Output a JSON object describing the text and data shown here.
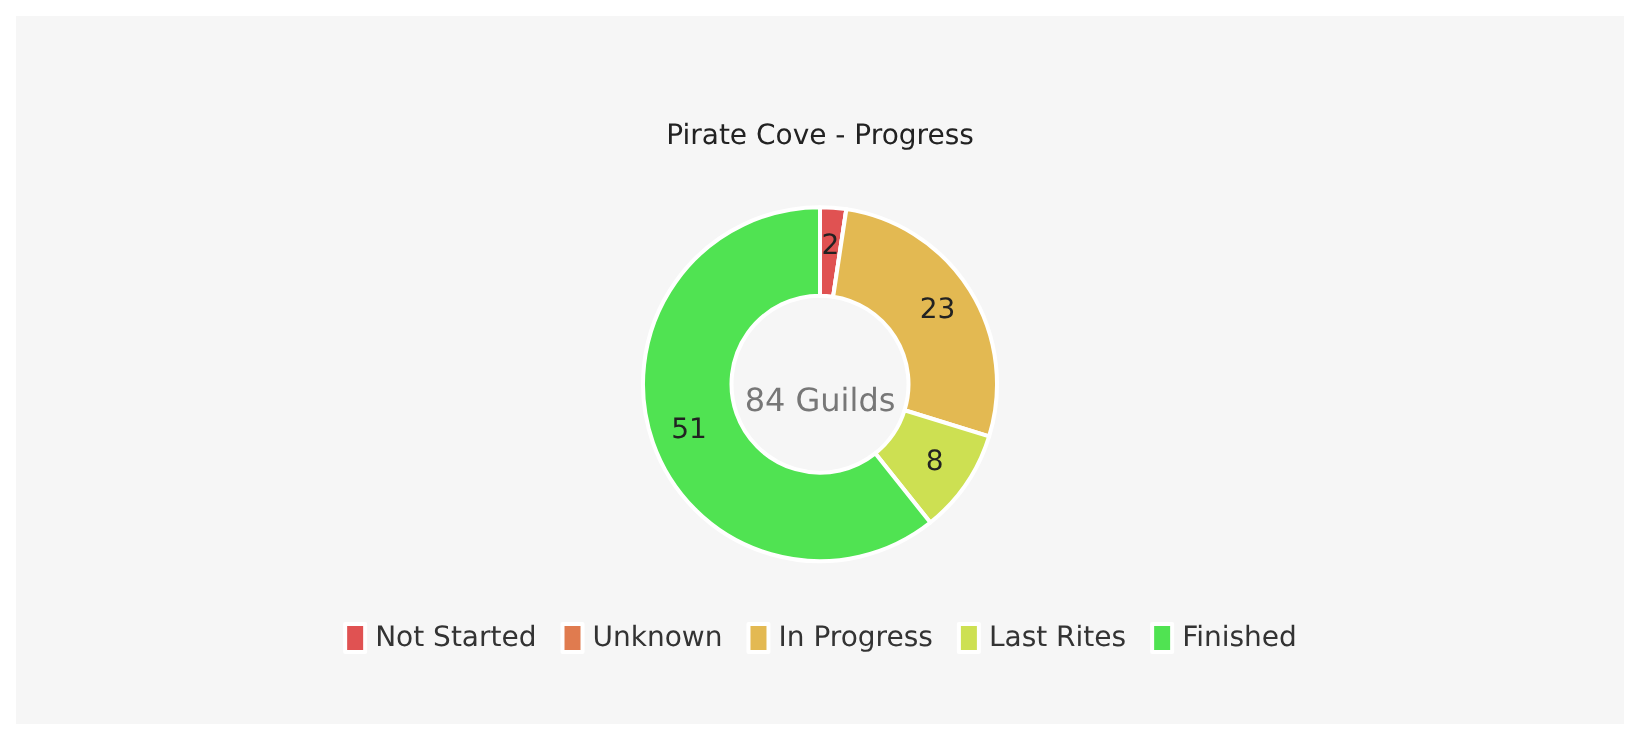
{
  "chart_data": {
    "type": "donut",
    "title": "Pirate Cove - Progress",
    "categories": [
      "Not Started",
      "Unknown",
      "In Progress",
      "Last Rites",
      "Finished"
    ],
    "values": [
      2,
      0,
      23,
      8,
      51
    ],
    "value_labels": [
      "2",
      null,
      "23",
      "8",
      "51"
    ],
    "colors": [
      "#e05252",
      "#e07b4f",
      "#e3b952",
      "#cde052",
      "#50e352"
    ],
    "annotations": [
      "84 Guilds"
    ],
    "legend": "bottom"
  }
}
